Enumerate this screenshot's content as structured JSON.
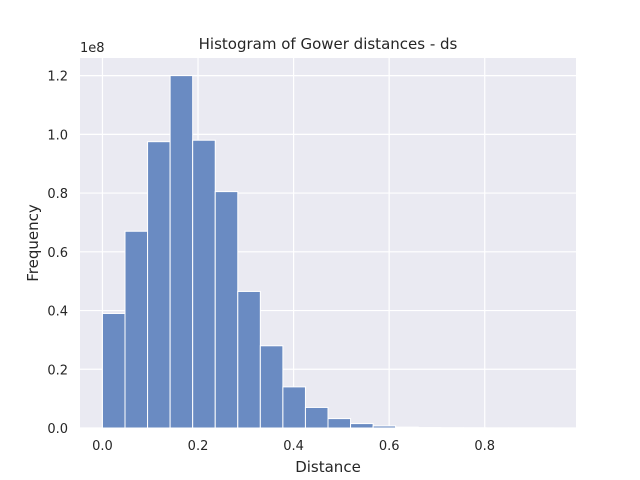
{
  "chart_data": {
    "type": "bar",
    "title": "Histogram of Gower distances - ds",
    "xlabel": "Distance",
    "ylabel": "Frequency",
    "y_offset_label": "1e8",
    "bin_width": 0.0472,
    "bin_starts": [
      0.0,
      0.0472,
      0.0944,
      0.1416,
      0.1888,
      0.236,
      0.2832,
      0.3304,
      0.3776,
      0.4248,
      0.472,
      0.5192,
      0.5664,
      0.6136,
      0.6608,
      0.708,
      0.7552,
      0.8024,
      0.8496,
      0.8968
    ],
    "values": [
      0.39,
      0.67,
      0.975,
      1.2,
      0.98,
      0.805,
      0.465,
      0.28,
      0.14,
      0.07,
      0.032,
      0.015,
      0.007,
      0.003,
      0.0015,
      0.0008,
      0.0005,
      0.0003,
      0.0002,
      0.0001
    ],
    "x_ticks": [
      "0.0",
      "0.2",
      "0.4",
      "0.6",
      "0.8"
    ],
    "y_ticks": [
      "0.0",
      "0.2",
      "0.4",
      "0.6",
      "0.8",
      "1.0",
      "1.2"
    ],
    "xlim": [
      -0.047,
      0.991
    ],
    "ylim": [
      0,
      1.26
    ],
    "grid": true,
    "colors": {
      "bar": "#6a8bc2",
      "background": "#eaeaf2",
      "grid": "#ffffff"
    }
  }
}
